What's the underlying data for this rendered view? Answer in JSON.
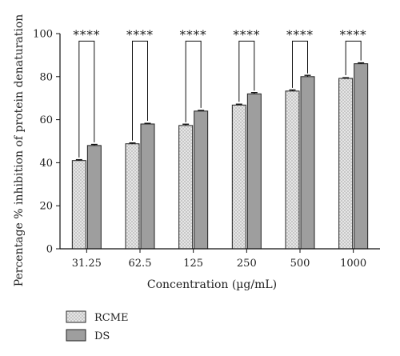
{
  "chart_data": {
    "type": "bar",
    "categories": [
      "31.25",
      "62.5",
      "125",
      "250",
      "500",
      "1000"
    ],
    "series": [
      {
        "name": "RCME",
        "values": [
          41,
          48.8,
          57.3,
          66.8,
          73.3,
          79.2
        ],
        "errors": [
          0.4,
          0.4,
          0.6,
          0.4,
          0.5,
          0.3
        ],
        "color": "#e4e4e4",
        "pattern": "dotted"
      },
      {
        "name": "DS",
        "values": [
          48,
          58,
          64,
          72,
          80,
          86
        ],
        "errors": [
          0.5,
          0.3,
          0.3,
          0.6,
          0.6,
          0.4
        ],
        "color": "#9e9e9e",
        "pattern": "solid"
      }
    ],
    "xlabel": "Concentration (µg/mL)",
    "ylabel": "Percentage % inhibition of protein denaturation",
    "ylim": [
      0,
      100
    ],
    "yticks": [
      0,
      20,
      40,
      60,
      80,
      100
    ],
    "grid": false,
    "legend_position": "bottom-left",
    "significance": [
      "****",
      "****",
      "****",
      "****",
      "****",
      "****"
    ]
  }
}
